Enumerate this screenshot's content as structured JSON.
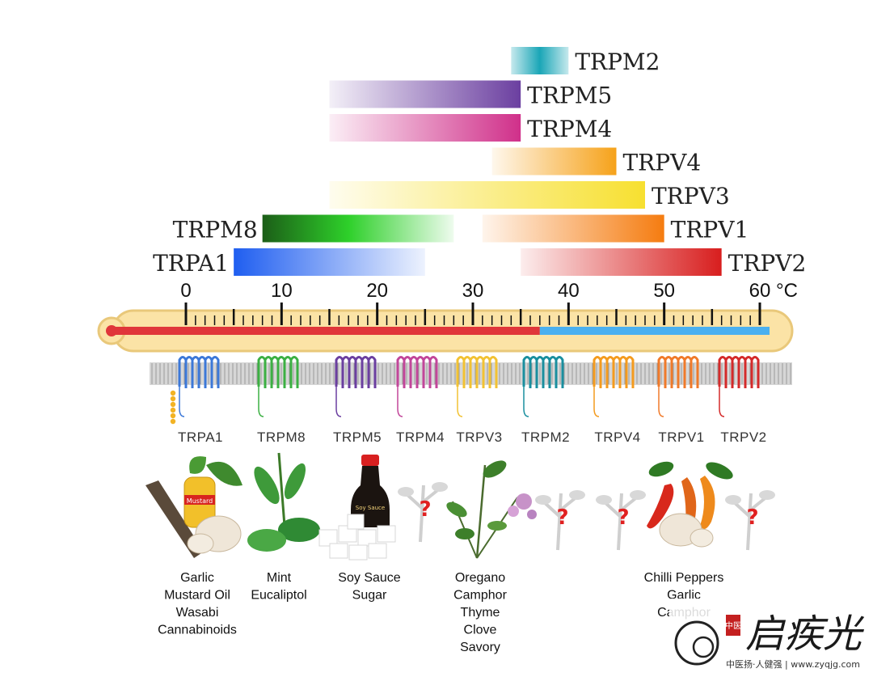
{
  "scale": {
    "min": 0,
    "max": 60,
    "step": 10,
    "unit": "°C",
    "tick_labels": [
      "0",
      "10",
      "20",
      "30",
      "40",
      "50",
      "60"
    ]
  },
  "body_temperature": 37,
  "bars": [
    {
      "name": "TRPM2",
      "from": 34,
      "to": 40,
      "color": "#1aa6b7",
      "gradient": "center",
      "label_side": "right"
    },
    {
      "name": "TRPM5",
      "from": 15,
      "to": 35,
      "color": "#6b3fa0",
      "gradient": "right",
      "label_side": "right"
    },
    {
      "name": "TRPM4",
      "from": 15,
      "to": 35,
      "color": "#d0308a",
      "gradient": "right",
      "label_side": "right"
    },
    {
      "name": "TRPV4",
      "from": 32,
      "to": 45,
      "color": "#f6a21a",
      "gradient": "right",
      "label_side": "right"
    },
    {
      "name": "TRPV3",
      "from": 15,
      "to": 48,
      "color": "#f7e030",
      "gradient": "right",
      "label_side": "right"
    },
    {
      "name": "TRPM8",
      "from": 8,
      "to": 28,
      "color": "#1c5e18",
      "color2": "#2ed02a",
      "gradient": "left",
      "label_side": "left"
    },
    {
      "name": "TRPV1",
      "from": 31,
      "to": 50,
      "color": "#f57c10",
      "gradient": "right",
      "label_side": "right"
    },
    {
      "name": "TRPA1",
      "from": 5,
      "to": 25,
      "color": "#1f5ef0",
      "gradient": "left",
      "label_side": "left"
    },
    {
      "name": "TRPV2",
      "from": 35,
      "to": 56,
      "color": "#d81e1e",
      "gradient": "right",
      "label_side": "right"
    }
  ],
  "channels": [
    {
      "name": "TRPA1",
      "color": "#3c78d8"
    },
    {
      "name": "TRPM8",
      "color": "#3cb043"
    },
    {
      "name": "TRPM5",
      "color": "#6b3fa0"
    },
    {
      "name": "TRPM4",
      "color": "#c2469a"
    },
    {
      "name": "TRPV3",
      "color": "#f2c233"
    },
    {
      "name": "TRPM2",
      "color": "#1a8f9f"
    },
    {
      "name": "TRPV4",
      "color": "#f49b1e"
    },
    {
      "name": "TRPV1",
      "color": "#f07a2a"
    },
    {
      "name": "TRPV2",
      "color": "#d42a2a"
    }
  ],
  "agonists": [
    {
      "lines": [
        "Garlic",
        "Mustard Oil",
        "Wasabi",
        "Cannabinoids"
      ]
    },
    {
      "lines": [
        "Mint",
        "Eucaliptol"
      ]
    },
    {
      "lines": [
        "Soy Sauce",
        "Sugar"
      ]
    },
    {
      "lines": [
        "Oregano",
        "Camphor",
        "Thyme",
        "Clove",
        "Savory"
      ]
    },
    {
      "lines": [
        "Chilli Peppers",
        "Garlic",
        "Camphor"
      ]
    }
  ],
  "pictures": {
    "mustard_label": "Mustard",
    "soy_label": "Soy Sauce",
    "unknown_marker": "?"
  },
  "watermark": {
    "brand": "启疾光",
    "seal": "中医",
    "tagline": "中医扬·人健强 | www.zyqjg.com"
  },
  "colors": {
    "thermo_fill": "#fbe3a6",
    "thermo_border": "#e9c87a",
    "mercury_red": "#e0363a",
    "mercury_blue": "#4ab0f0",
    "membrane": "#c8c8c8"
  }
}
